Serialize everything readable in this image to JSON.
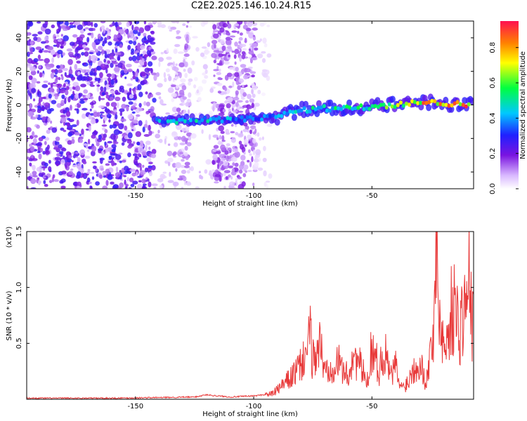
{
  "title": "C2E2.2025.146.10.24.R15",
  "chart_data": [
    {
      "type": "heatmap",
      "xlabel": "Height of straight line (km)",
      "ylabel": "Frequency (Hz)",
      "xlim": [
        -196,
        -7
      ],
      "ylim": [
        -50,
        50
      ],
      "xticks": [
        -150,
        -100,
        -50
      ],
      "xtick_labels": [
        "-150",
        "-100",
        "-50"
      ],
      "yticks": [
        -40,
        -20,
        0,
        20,
        40
      ],
      "ytick_labels": [
        "-40",
        "-20",
        "0",
        "20",
        "40"
      ],
      "colorbar": {
        "label": "Normalized spectral amplitude",
        "range": [
          0,
          0.95
        ],
        "ticks": [
          0.0,
          0.2,
          0.4,
          0.6,
          0.8
        ],
        "tick_labels": [
          "0.0",
          "0.2",
          "0.4",
          "0.6",
          "0.8"
        ]
      },
      "signal_trace": {
        "x": [
          -140,
          -130,
          -120,
          -110,
          -100,
          -90,
          -80,
          -70,
          -60,
          -50,
          -40,
          -30,
          -20,
          -10
        ],
        "y": [
          -10,
          -9,
          -9,
          -9,
          -8,
          -7,
          -3,
          -2,
          -2,
          -1,
          0,
          2,
          1,
          0
        ],
        "amplitude": [
          0.45,
          0.5,
          0.5,
          0.45,
          0.45,
          0.45,
          0.5,
          0.55,
          0.55,
          0.6,
          0.7,
          0.85,
          0.9,
          0.9
        ]
      }
    },
    {
      "type": "line",
      "xlabel": "Height of straight line (km)",
      "ylabel": "SNR (10 * v/v)",
      "y_multiplier": "(x10⁴)",
      "xlim": [
        -196,
        -7
      ],
      "ylim": [
        0,
        1.5
      ],
      "xticks": [
        -150,
        -100,
        -50
      ],
      "xtick_labels": [
        "-150",
        "-100",
        "-50"
      ],
      "yticks": [
        0.5,
        1.0,
        1.5
      ],
      "ytick_labels": [
        "0.5",
        "1.0",
        "1.5"
      ],
      "series": [
        {
          "color": "#e83a3a",
          "x": [
            -196,
            -180,
            -160,
            -140,
            -125,
            -120,
            -110,
            -100,
            -92,
            -88,
            -85,
            -80,
            -76,
            -75,
            -72,
            -70,
            -65,
            -60,
            -58,
            -55,
            -52,
            -50,
            -47,
            -45,
            -42,
            -40,
            -38,
            -35,
            -32,
            -30,
            -27,
            -24,
            -23,
            -22,
            -21,
            -19,
            -17,
            -15,
            -13,
            -11,
            -10,
            -9,
            -8,
            -7
          ],
          "y": [
            0.01,
            0.01,
            0.01,
            0.015,
            0.02,
            0.04,
            0.02,
            0.03,
            0.05,
            0.12,
            0.18,
            0.3,
            0.55,
            0.35,
            0.5,
            0.25,
            0.35,
            0.2,
            0.4,
            0.3,
            0.15,
            0.5,
            0.25,
            0.45,
            0.2,
            0.3,
            0.1,
            0.15,
            0.3,
            0.35,
            0.15,
            0.6,
            1.5,
            0.9,
            0.7,
            0.4,
            0.75,
            0.85,
            0.6,
            0.85,
            0.8,
            1.1,
            0.75,
            0.7
          ]
        }
      ]
    }
  ]
}
